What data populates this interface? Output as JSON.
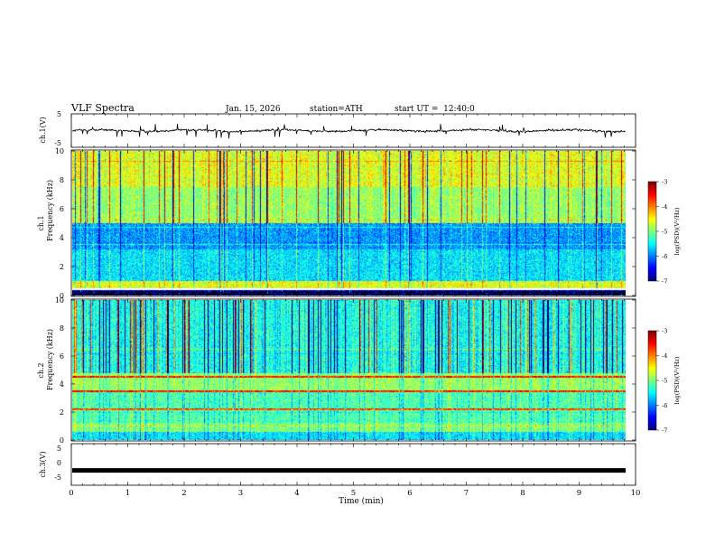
{
  "chart_data": [
    {
      "type": "line",
      "panel": "ch1-waveform",
      "ylabel": "ch.1(V)",
      "ylim": [
        -5,
        5
      ],
      "yticks": [
        "5",
        "-5"
      ],
      "xlim": [
        0,
        10
      ],
      "series": [
        {
          "name": "ch.1 voltage",
          "mean": 0,
          "noise": 0.8
        }
      ]
    },
    {
      "type": "heatmap",
      "panel": "ch1-spectrogram",
      "ylabel_top": "ch.1",
      "ylabel": "Frequency (kHz)",
      "ylim": [
        0,
        10
      ],
      "yticks": [
        "0",
        "2",
        "4",
        "6",
        "8",
        "10"
      ],
      "xlim": [
        0,
        9.8
      ],
      "colorbar": {
        "label": "log(PSD)(V²/Hz)",
        "range": [
          -7,
          -3
        ],
        "ticks": [
          "-3",
          "-4",
          "-5",
          "-6",
          "-7"
        ]
      },
      "band_levels": [
        {
          "f": [
            0,
            0.5
          ],
          "level": -6.6
        },
        {
          "f": [
            0.5,
            1.0
          ],
          "level": -4.6
        },
        {
          "f": [
            1.0,
            3.2
          ],
          "level": -5.6
        },
        {
          "f": [
            3.2,
            5.0
          ],
          "level": -5.9
        },
        {
          "f": [
            5.0,
            7.5
          ],
          "level": -4.9
        },
        {
          "f": [
            7.5,
            10
          ],
          "level": -4.6
        }
      ]
    },
    {
      "type": "heatmap",
      "panel": "ch2-spectrogram",
      "ylabel_top": "ch.2",
      "ylabel": "Frequency (kHz)",
      "ylim": [
        0,
        10
      ],
      "yticks": [
        "0",
        "2",
        "4",
        "6",
        "8",
        "10"
      ],
      "xlim": [
        0,
        9.8
      ],
      "colorbar": {
        "label": "log(PSD)(V²/Hz)",
        "range": [
          -7,
          -3
        ],
        "ticks": [
          "-3",
          "-4",
          "-5",
          "-6",
          "-7"
        ]
      },
      "band_levels": [
        {
          "f": [
            0,
            0.6
          ],
          "level": -5.6
        },
        {
          "f": [
            0.6,
            1.2
          ],
          "level": -5.0
        },
        {
          "f": [
            1.2,
            3.4
          ],
          "level": -5.2
        },
        {
          "f": [
            3.4,
            4.8
          ],
          "level": -4.9
        },
        {
          "f": [
            4.8,
            10
          ],
          "level": -5.4
        }
      ],
      "tone_lines_khz": [
        2.2,
        3.5,
        4.5
      ]
    },
    {
      "type": "line",
      "panel": "ch3-waveform",
      "ylabel": "ch.3(V)",
      "ylim": [
        -5,
        5
      ],
      "yticks": [
        "5",
        "0",
        "-5"
      ],
      "xlim": [
        0,
        10
      ],
      "series": [
        {
          "name": "ch.3 voltage",
          "mean": -1.5,
          "noise": 0.1
        }
      ]
    }
  ],
  "header": {
    "title": "VLF Spectra",
    "date": "Jan. 15, 2026",
    "station": "station=ATH",
    "start": "start UT =  12:40:0"
  },
  "xaxis": {
    "label": "Time (min)",
    "ticks": [
      "0",
      "1",
      "2",
      "3",
      "4",
      "5",
      "6",
      "7",
      "8",
      "9",
      "10"
    ],
    "range": [
      0,
      10
    ]
  },
  "colors": {
    "frame": "#000000",
    "background": "#ffffff"
  }
}
